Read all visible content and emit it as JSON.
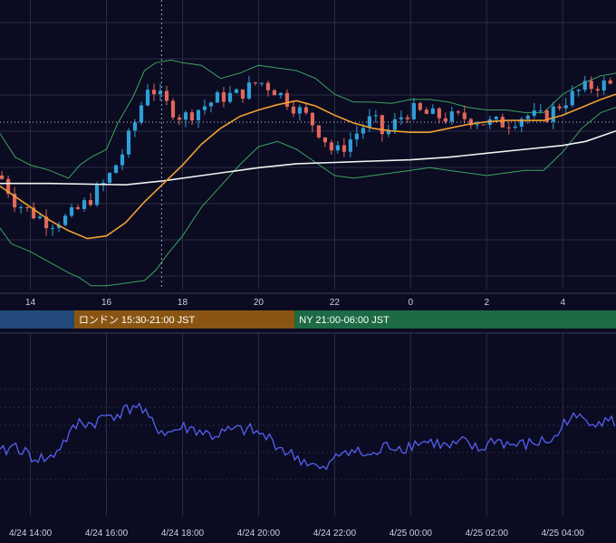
{
  "chart_data": [
    {
      "type": "candlestick",
      "x_tick_labels": [
        "14",
        "16",
        "18",
        "20",
        "22",
        "0",
        "2",
        "4"
      ],
      "x_tick_hours": [
        14,
        16,
        18,
        20,
        22,
        24,
        26,
        28
      ],
      "x_range_hours": [
        13.2,
        29.4
      ],
      "y_range": [
        0,
        100
      ],
      "grid": true,
      "crosshair": {
        "x_hour": 17.45,
        "y": 60
      },
      "candles": [],
      "overlays": {
        "sma_long": [
          [
            13.2,
            37
          ],
          [
            14.5,
            37
          ],
          [
            16.5,
            36.5
          ],
          [
            17.5,
            38
          ],
          [
            18.5,
            40
          ],
          [
            20,
            43
          ],
          [
            21,
            44.5
          ],
          [
            22,
            45
          ],
          [
            23,
            45.5
          ],
          [
            24,
            46
          ],
          [
            25,
            47
          ],
          [
            26,
            48.5
          ],
          [
            27,
            50
          ],
          [
            28,
            51.5
          ],
          [
            28.6,
            53
          ],
          [
            29.4,
            57
          ]
        ],
        "sma_short": [
          [
            13.2,
            36
          ],
          [
            14,
            28
          ],
          [
            14.5,
            23
          ],
          [
            15,
            19
          ],
          [
            15.5,
            16
          ],
          [
            16,
            17
          ],
          [
            16.5,
            22
          ],
          [
            17,
            30
          ],
          [
            17.5,
            37
          ],
          [
            18,
            44
          ],
          [
            18.5,
            52
          ],
          [
            19,
            58
          ],
          [
            19.5,
            62.5
          ],
          [
            20,
            65
          ],
          [
            20.5,
            67
          ],
          [
            21,
            68.5
          ],
          [
            21.5,
            66.5
          ],
          [
            22,
            63
          ],
          [
            22.5,
            60
          ],
          [
            23,
            58
          ],
          [
            23.5,
            57
          ],
          [
            24,
            56.5
          ],
          [
            24.5,
            56.5
          ],
          [
            25,
            58
          ],
          [
            25.5,
            59.5
          ],
          [
            26,
            60.5
          ],
          [
            26.5,
            61
          ],
          [
            27,
            61
          ],
          [
            27.5,
            61
          ],
          [
            28,
            63
          ],
          [
            28.5,
            66
          ],
          [
            29,
            69
          ],
          [
            29.4,
            71
          ]
        ],
        "bb_upper": [
          [
            13.2,
            56
          ],
          [
            13.6,
            47
          ],
          [
            14,
            44
          ],
          [
            14.5,
            42
          ],
          [
            15,
            39
          ],
          [
            15.3,
            44
          ],
          [
            15.6,
            47
          ],
          [
            16,
            50
          ],
          [
            16.3,
            60
          ],
          [
            16.7,
            70
          ],
          [
            17,
            80
          ],
          [
            17.3,
            83
          ],
          [
            17.7,
            84
          ],
          [
            18,
            83
          ],
          [
            18.5,
            82
          ],
          [
            19,
            77
          ],
          [
            19.5,
            79
          ],
          [
            20,
            82
          ],
          [
            20.5,
            81
          ],
          [
            21,
            80
          ],
          [
            21.5,
            77
          ],
          [
            22,
            71
          ],
          [
            22.5,
            68
          ],
          [
            23,
            68
          ],
          [
            23.5,
            67.5
          ],
          [
            24,
            69
          ],
          [
            24.5,
            69
          ],
          [
            25,
            68
          ],
          [
            25.5,
            66
          ],
          [
            26,
            65
          ],
          [
            26.5,
            65
          ],
          [
            27,
            64
          ],
          [
            27.5,
            64
          ],
          [
            28,
            71
          ],
          [
            28.5,
            75
          ],
          [
            29,
            78
          ],
          [
            29.4,
            79
          ]
        ],
        "bb_lower": [
          [
            13.2,
            20
          ],
          [
            13.5,
            14
          ],
          [
            14,
            11
          ],
          [
            14.5,
            7
          ],
          [
            15,
            3
          ],
          [
            15.3,
            1
          ],
          [
            15.6,
            -2
          ],
          [
            16,
            -2
          ],
          [
            16.5,
            -1
          ],
          [
            17,
            0
          ],
          [
            17.3,
            4
          ],
          [
            17.6,
            10
          ],
          [
            18,
            17
          ],
          [
            18.5,
            28
          ],
          [
            19,
            36
          ],
          [
            19.5,
            44
          ],
          [
            20,
            51
          ],
          [
            20.5,
            53
          ],
          [
            21,
            50
          ],
          [
            21.5,
            45
          ],
          [
            22,
            40
          ],
          [
            22.5,
            39
          ],
          [
            23,
            40
          ],
          [
            23.5,
            41
          ],
          [
            24,
            42
          ],
          [
            24.5,
            43
          ],
          [
            25,
            42
          ],
          [
            25.5,
            41
          ],
          [
            26,
            40
          ],
          [
            26.5,
            41
          ],
          [
            27,
            42
          ],
          [
            27.5,
            42
          ],
          [
            28,
            49
          ],
          [
            28.5,
            58
          ],
          [
            29,
            64
          ],
          [
            29.4,
            66
          ]
        ]
      }
    },
    {
      "type": "table",
      "sessions": [
        {
          "label": "",
          "start_hour": 13.2,
          "end_hour": 15.15,
          "color": "#224a7a"
        },
        {
          "label": "ロンドン 15:30-21:00 JST",
          "start_hour": 15.15,
          "end_hour": 20.95,
          "color": "#8a5512"
        },
        {
          "label": "NY 21:00-06:00 JST",
          "start_hour": 20.95,
          "end_hour": 29.4,
          "color": "#1d6b45"
        }
      ]
    },
    {
      "type": "line",
      "x_tick_labels": [
        "4/24 14:00",
        "4/24 16:00",
        "4/24 18:00",
        "4/24 20:00",
        "4/24 22:00",
        "4/25 00:00",
        "4/25 02:00",
        "4/25 04:00"
      ],
      "x_tick_hours": [
        14,
        16,
        18,
        20,
        22,
        24,
        26,
        28
      ],
      "x_range_hours": [
        13.2,
        29.4
      ],
      "y_range": [
        0,
        100
      ],
      "grid": true,
      "series": [
        {
          "color": "#5560f0",
          "points": []
        }
      ]
    }
  ],
  "colors": {
    "background": "#0b0b22",
    "grid": "#2a2e45",
    "candle_up": "#2f9fd8",
    "candle_down": "#e0675a",
    "sma_long": "#f2f2f2",
    "sma_short": "#f0a030",
    "bollinger": "#3aa55e",
    "oscillator": "#5560f0"
  }
}
